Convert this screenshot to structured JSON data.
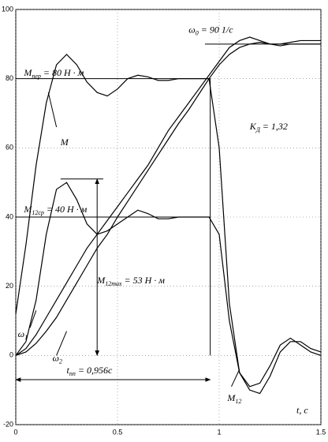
{
  "chart_data": {
    "type": "line",
    "x": [
      0,
      0.05,
      0.1,
      0.15,
      0.2,
      0.25,
      0.3,
      0.35,
      0.4,
      0.45,
      0.5,
      0.55,
      0.6,
      0.65,
      0.7,
      0.75,
      0.8,
      0.85,
      0.9,
      0.95,
      1.0,
      1.05,
      1.1,
      1.15,
      1.2,
      1.25,
      1.3,
      1.35,
      1.4,
      1.45,
      1.5
    ],
    "series": [
      {
        "color": "#000000",
        "values": [
          12,
          32,
          55,
          73,
          84,
          87,
          84,
          79,
          76,
          75,
          77,
          80,
          81,
          80.5,
          79.5,
          79.5,
          80,
          80,
          80,
          80,
          60,
          15,
          -5,
          -10,
          -11,
          -6,
          1,
          4,
          4,
          2,
          1
        ]
      },
      {
        "color": "#000000",
        "values": [
          0,
          4,
          16,
          35,
          48,
          50,
          45,
          38,
          35,
          36,
          38,
          40,
          42,
          41,
          39.5,
          39.5,
          40,
          40,
          40,
          40,
          35,
          10,
          -5,
          -9,
          -8,
          -3,
          3,
          5,
          3,
          1,
          0
        ]
      },
      {
        "color": "#000000",
        "values": [
          0,
          2,
          6,
          11,
          16,
          21,
          26,
          31,
          35,
          39,
          43,
          47,
          51,
          55,
          60,
          65,
          69,
          73,
          77,
          81,
          85,
          89,
          91,
          92,
          91,
          90,
          90,
          90.5,
          91,
          91,
          91
        ]
      },
      {
        "color": "#000000",
        "values": [
          0,
          1,
          3.5,
          7,
          11,
          16,
          21,
          26,
          31,
          35,
          40,
          44.5,
          49,
          53.5,
          58,
          62.5,
          67,
          71,
          75.5,
          80,
          84,
          87,
          89,
          90,
          90.5,
          90,
          89.5,
          90,
          90,
          90,
          90
        ]
      }
    ],
    "lines": [
      {
        "x": [
          0,
          0.956,
          0.956
        ],
        "y": [
          80,
          80,
          0
        ],
        "arrows": false
      },
      {
        "x": [
          0,
          0.956
        ],
        "y": [
          40,
          40
        ],
        "arrows": false
      },
      {
        "x": [
          0.22,
          0.43
        ],
        "y": [
          51,
          51
        ],
        "arrows": false
      },
      {
        "x": [
          0.4,
          0.4
        ],
        "y": [
          51,
          0
        ],
        "arrows": true
      },
      {
        "x": [
          0,
          0.956
        ],
        "y": [
          -7,
          -7
        ],
        "arrows": true
      },
      {
        "x": [
          0.93,
          1.5
        ],
        "y": [
          90,
          90
        ],
        "arrows": false
      },
      {
        "x": [
          0.2,
          0.16
        ],
        "y": [
          66,
          76
        ],
        "arrows": false
      },
      {
        "x": [
          0.07,
          0.1
        ],
        "y": [
          8,
          13
        ],
        "arrows": false
      },
      {
        "x": [
          0.2,
          0.25
        ],
        "y": [
          0,
          7
        ],
        "arrows": false
      },
      {
        "x": [
          1.06,
          1.1
        ],
        "y": [
          -9,
          -4
        ],
        "arrows": false
      }
    ],
    "annotations": [
      {
        "x": 0.85,
        "y": 94,
        "parts": [
          {
            "t": "ω"
          },
          {
            "t": "0",
            "sub": true
          },
          {
            "t": " = 90 1/c"
          }
        ]
      },
      {
        "x": 0.04,
        "y": 81.5,
        "parts": [
          {
            "t": "M"
          },
          {
            "t": "пер",
            "sub": true
          },
          {
            "t": " = 80 H · м"
          }
        ]
      },
      {
        "x": 0.22,
        "y": 61.5,
        "parts": [
          {
            "t": "M"
          }
        ]
      },
      {
        "x": 1.15,
        "y": 66,
        "parts": [
          {
            "t": "K"
          },
          {
            "t": "Д",
            "sub": true
          },
          {
            "t": " = 1,32"
          }
        ]
      },
      {
        "x": 0.04,
        "y": 42,
        "parts": [
          {
            "t": "M"
          },
          {
            "t": "12ср",
            "sub": true
          },
          {
            "t": " = 40 H · м"
          }
        ]
      },
      {
        "x": 0.4,
        "y": 21.5,
        "parts": [
          {
            "t": "M"
          },
          {
            "t": "12max",
            "sub": true
          },
          {
            "t": " = 53 H · м"
          }
        ]
      },
      {
        "x": 0.01,
        "y": 6,
        "parts": [
          {
            "t": "ω"
          },
          {
            "t": "1",
            "sub": true
          }
        ]
      },
      {
        "x": 0.18,
        "y": -1,
        "parts": [
          {
            "t": "ω"
          },
          {
            "t": "2",
            "sub": true
          }
        ]
      },
      {
        "x": 0.25,
        "y": -4.5,
        "parts": [
          {
            "t": "t"
          },
          {
            "t": "пп",
            "sub": true
          },
          {
            "t": " = 0,956c"
          }
        ]
      },
      {
        "x": 1.04,
        "y": -12.5,
        "parts": [
          {
            "t": "M"
          },
          {
            "t": "12",
            "sub": true
          }
        ]
      },
      {
        "x": 1.38,
        "y": -16,
        "parts": [
          {
            "t": "t, c"
          }
        ]
      }
    ],
    "xlim": [
      0,
      1.5
    ],
    "ylim": [
      -20,
      100
    ],
    "xticks": [
      0,
      0.5,
      1,
      1.5
    ],
    "yticks": [
      -20,
      0,
      20,
      40,
      60,
      80,
      100
    ],
    "grid": true
  }
}
